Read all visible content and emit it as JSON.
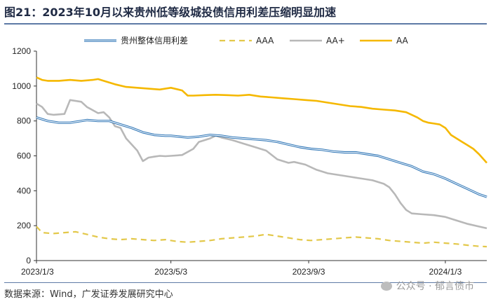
{
  "header": {
    "title": "图21：2023年10月以来贵州低等级城投债信用利差压缩明显加速"
  },
  "footer": {
    "source": "数据来源：Wind，广发证券发展研究中心",
    "watermark": "公众号 · 郁言债市"
  },
  "chart_data": {
    "type": "line",
    "title": "图21：2023年10月以来贵州低等级城投债信用利差压缩明显加速",
    "xlabel": "",
    "ylabel": "",
    "ylim": [
      0,
      1200
    ],
    "yticks": [
      0,
      200,
      400,
      600,
      800,
      1000,
      1200
    ],
    "xlim": [
      0,
      402
    ],
    "xticks": [
      {
        "label": "2023/1/3",
        "day": 0
      },
      {
        "label": "2023/5/3",
        "day": 120
      },
      {
        "label": "2023/9/3",
        "day": 243
      },
      {
        "label": "2024/1/3",
        "day": 365
      }
    ],
    "grid": false,
    "legend_position": "top",
    "series": [
      {
        "name": "贵州整体信用利差",
        "color": "#2e75b6",
        "style": "double",
        "x": [
          0,
          10,
          20,
          30,
          45,
          55,
          65,
          75,
          85,
          95,
          105,
          115,
          120,
          135,
          145,
          155,
          165,
          175,
          185,
          195,
          205,
          215,
          225,
          235,
          245,
          255,
          265,
          275,
          285,
          295,
          305,
          315,
          325,
          335,
          345,
          355,
          365,
          375,
          385,
          395,
          402
        ],
        "values": [
          820,
          800,
          790,
          790,
          805,
          800,
          800,
          780,
          760,
          735,
          720,
          715,
          715,
          705,
          710,
          720,
          715,
          705,
          700,
          695,
          690,
          680,
          665,
          650,
          640,
          635,
          625,
          620,
          620,
          610,
          600,
          580,
          560,
          540,
          510,
          495,
          470,
          440,
          410,
          380,
          365
        ]
      },
      {
        "name": "AAA",
        "color": "#e3c84a",
        "style": "dashed",
        "x": [
          0,
          5,
          15,
          25,
          35,
          45,
          55,
          65,
          75,
          85,
          95,
          105,
          115,
          125,
          135,
          145,
          155,
          165,
          175,
          185,
          195,
          205,
          215,
          225,
          235,
          245,
          255,
          265,
          275,
          285,
          295,
          305,
          315,
          325,
          335,
          345,
          355,
          365,
          375,
          385,
          395,
          402
        ],
        "values": [
          195,
          160,
          155,
          160,
          165,
          150,
          135,
          125,
          120,
          125,
          120,
          115,
          120,
          110,
          105,
          110,
          115,
          125,
          130,
          135,
          140,
          150,
          140,
          130,
          120,
          115,
          120,
          125,
          130,
          135,
          130,
          125,
          115,
          110,
          105,
          100,
          105,
          100,
          95,
          88,
          82,
          80
        ]
      },
      {
        "name": "AA+",
        "color": "#b8b8b8",
        "style": "solid",
        "x": [
          0,
          5,
          10,
          15,
          25,
          30,
          40,
          45,
          55,
          60,
          65,
          70,
          75,
          80,
          85,
          90,
          95,
          100,
          105,
          110,
          115,
          120,
          130,
          140,
          145,
          155,
          160,
          165,
          175,
          185,
          195,
          205,
          215,
          225,
          230,
          240,
          250,
          260,
          270,
          280,
          290,
          300,
          310,
          315,
          320,
          325,
          330,
          335,
          345,
          355,
          365,
          375,
          385,
          395,
          402
        ],
        "values": [
          900,
          880,
          840,
          835,
          840,
          920,
          910,
          880,
          845,
          850,
          820,
          770,
          760,
          700,
          665,
          630,
          570,
          590,
          595,
          600,
          598,
          600,
          605,
          640,
          680,
          700,
          715,
          705,
          690,
          670,
          650,
          630,
          580,
          560,
          565,
          550,
          520,
          500,
          490,
          480,
          470,
          460,
          440,
          420,
          380,
          330,
          290,
          270,
          265,
          260,
          250,
          230,
          210,
          195,
          185
        ]
      },
      {
        "name": "AA",
        "color": "#f5b800",
        "style": "solid",
        "x": [
          0,
          5,
          10,
          20,
          30,
          40,
          50,
          55,
          60,
          70,
          80,
          90,
          100,
          110,
          120,
          130,
          135,
          140,
          150,
          160,
          170,
          180,
          190,
          200,
          210,
          220,
          230,
          240,
          250,
          260,
          270,
          280,
          290,
          300,
          310,
          320,
          330,
          340,
          345,
          350,
          355,
          360,
          365,
          370,
          375,
          380,
          385,
          390,
          395,
          402
        ],
        "values": [
          1050,
          1035,
          1030,
          1030,
          1035,
          1030,
          1035,
          1040,
          1030,
          1010,
          995,
          990,
          985,
          980,
          990,
          975,
          945,
          945,
          948,
          950,
          948,
          945,
          950,
          940,
          935,
          930,
          925,
          920,
          915,
          905,
          895,
          885,
          880,
          870,
          865,
          860,
          850,
          820,
          800,
          790,
          785,
          780,
          760,
          720,
          700,
          680,
          660,
          640,
          610,
          560
        ]
      }
    ]
  }
}
